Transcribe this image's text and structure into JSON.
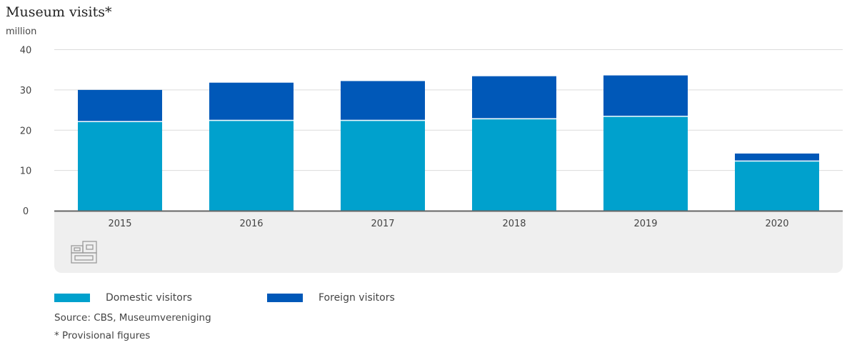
{
  "chart_data": {
    "type": "bar",
    "stacked": true,
    "title": "Museum visits*",
    "ylabel": "million",
    "ylim": [
      0,
      40
    ],
    "yticks": [
      0,
      10,
      20,
      30,
      40
    ],
    "grid": true,
    "categories": [
      "2015",
      "2016",
      "2017",
      "2018",
      "2019",
      "2020"
    ],
    "series": [
      {
        "name": "Domestic visitors",
        "color": "#00a1cd",
        "values": [
          22.1,
          22.4,
          22.4,
          22.8,
          23.4,
          12.3
        ]
      },
      {
        "name": "Foreign visitors",
        "color": "#0058b8",
        "values": [
          7.9,
          9.4,
          9.8,
          10.6,
          10.2,
          1.9
        ]
      }
    ],
    "legend_position": "bottom-left",
    "source": "Source: CBS, Museumvereniging",
    "note": "* Provisional figures"
  }
}
